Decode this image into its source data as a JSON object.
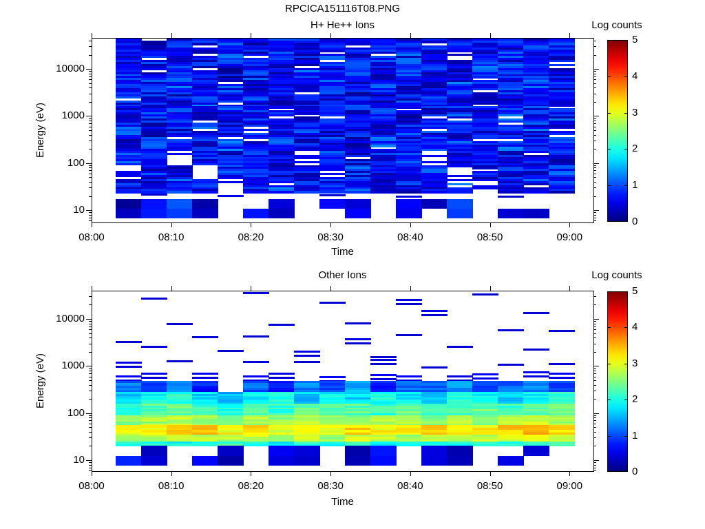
{
  "figure": {
    "title": "RPCICA151116T08.PNG"
  },
  "colors": {
    "background": "#ffffff",
    "axis": "#000000",
    "text": "#000000"
  },
  "chart_data": [
    {
      "type": "heatmap",
      "title": "H+ He++ Ions",
      "xlabel": "Time",
      "ylabel": "Energy (eV)",
      "colorbar_label": "Log counts",
      "colormap": "jet",
      "colorbar_range": [
        0,
        5
      ],
      "colorbar_ticks": [
        0,
        1,
        2,
        3,
        4,
        5
      ],
      "x_ticks": [
        "08:00",
        "08:10",
        "08:20",
        "08:30",
        "08:40",
        "08:50",
        "09:00"
      ],
      "y_ticks": [
        10,
        100,
        1000,
        10000
      ],
      "y_scale": "log",
      "y_range_ev": [
        5.8,
        45000
      ],
      "x_axis_span_minutes": 63,
      "data_time_start": "08:03",
      "data_time_end": "09:01",
      "n_time_columns": 18,
      "column_duration_minutes": 3.2,
      "bands": [
        {
          "e_hi": 45000,
          "e_lo": 23000,
          "style": "fine",
          "values": [
            0.7,
            0.55,
            0.8,
            0.6,
            0.7,
            0.5,
            0.85,
            0.65,
            0.6,
            0.75,
            0.7,
            0.55,
            0.65,
            0.7,
            0.8,
            0.6,
            0.7,
            0.65
          ]
        },
        {
          "e_hi": 23000,
          "e_lo": 11500,
          "style": "fine",
          "values": [
            0.6,
            0.75,
            0.5,
            0.7,
            0.85,
            0.6,
            0.7,
            0.55,
            0.8,
            0.65,
            0.7,
            0.85,
            0.5,
            0.6,
            0.7,
            0.75,
            0.6,
            0.7
          ]
        },
        {
          "e_hi": 11500,
          "e_lo": 5800,
          "style": "fine",
          "values": [
            0.8,
            0.5,
            0.7,
            0.6,
            0.45,
            0.8,
            0.6,
            0.9,
            0.55,
            0.7,
            0.6,
            0.8,
            0.7,
            0.5,
            0.9,
            0.6,
            0.7,
            0.55
          ]
        },
        {
          "e_hi": 5800,
          "e_lo": 2900,
          "style": "fine",
          "values": [
            0.55,
            0.7,
            0.9,
            0.6,
            0.8,
            0.5,
            0.7,
            0.6,
            0.9,
            0.45,
            0.8,
            0.6,
            0.55,
            0.9,
            0.6,
            0.7,
            0.8,
            0.6
          ]
        },
        {
          "e_hi": 2900,
          "e_lo": 1450,
          "style": "fine",
          "values": [
            0.7,
            0.6,
            0.5,
            0.9,
            0.6,
            0.8,
            0.55,
            0.7,
            0.6,
            0.8,
            0.5,
            0.7,
            0.9,
            0.6,
            0.7,
            0.55,
            0.8,
            0.7
          ]
        },
        {
          "e_hi": 1450,
          "e_lo": 720,
          "style": "fine",
          "values": [
            0.6,
            0.9,
            0.7,
            0.5,
            0.8,
            0.6,
            0.9,
            0.55,
            0.7,
            0.6,
            0.8,
            0.5,
            0.6,
            0.8,
            0.55,
            0.9,
            0.6,
            0.8
          ]
        },
        {
          "e_hi": 720,
          "e_lo": 360,
          "style": "fine",
          "values": [
            0.9,
            0.5,
            0.6,
            0.8,
            0.55,
            0.7,
            0.6,
            0.8,
            0.5,
            0.9,
            0.6,
            0.7,
            0.8,
            0.55,
            0.7,
            0.6,
            0.9,
            0.5
          ]
        },
        {
          "e_hi": 360,
          "e_lo": 180,
          "style": "fine",
          "values": [
            0.5,
            0.8,
            0.6,
            0.7,
            0.9,
            0.55,
            0.8,
            0.6,
            0.7,
            0.5,
            0.9,
            0.6,
            0.7,
            0.8,
            0.6,
            0.9,
            0.55,
            0.7
          ]
        },
        {
          "e_hi": 180,
          "e_lo": 91,
          "style": "fine",
          "values": [
            0.8,
            0.6,
            null,
            0.7,
            0.5,
            0.9,
            0.6,
            null,
            0.8,
            0.55,
            0.7,
            0.9,
            null,
            0.6,
            0.8,
            0.5,
            0.7,
            0.6
          ]
        },
        {
          "e_hi": 91,
          "e_lo": 46,
          "style": "fine",
          "values": [
            null,
            0.7,
            0.5,
            null,
            0.8,
            0.6,
            0.55,
            0.7,
            null,
            0.9,
            0.6,
            0.5,
            0.8,
            null,
            0.6,
            0.7,
            0.55,
            0.8
          ]
        },
        {
          "e_hi": 46,
          "e_lo": 23,
          "style": "fine",
          "values": [
            0.6,
            0.5,
            0.8,
            0.6,
            null,
            0.7,
            0.9,
            0.55,
            0.6,
            0.8,
            0.5,
            0.7,
            0.6,
            0.9,
            null,
            0.6,
            0.8,
            0.7
          ]
        },
        {
          "e_hi": 23,
          "e_lo": 17,
          "style": "sparse",
          "values": [
            null,
            0.4,
            null,
            null,
            0.5,
            null,
            null,
            null,
            0.4,
            null,
            null,
            0.5,
            null,
            null,
            null,
            0.4,
            null,
            null
          ]
        },
        {
          "e_hi": 17,
          "e_lo": 6.6,
          "style": "chunk",
          "values": [
            0.2,
            0.6,
            0.9,
            0.3,
            null,
            0.7,
            0.4,
            null,
            0.8,
            0.5,
            null,
            0.6,
            0.3,
            0.9,
            null,
            0.5,
            0.25,
            null
          ]
        }
      ]
    },
    {
      "type": "heatmap",
      "title": "Other Ions",
      "xlabel": "Time",
      "ylabel": "Energy (eV)",
      "colorbar_label": "Log counts",
      "colormap": "jet",
      "colorbar_range": [
        0,
        5
      ],
      "colorbar_ticks": [
        0,
        1,
        2,
        3,
        4,
        5
      ],
      "x_ticks": [
        "08:00",
        "08:10",
        "08:20",
        "08:30",
        "08:40",
        "08:50",
        "09:00"
      ],
      "y_ticks": [
        10,
        100,
        1000,
        10000
      ],
      "y_scale": "log",
      "y_range_ev": [
        5.8,
        40000
      ],
      "x_axis_span_minutes": 63,
      "data_time_start": "08:03",
      "data_time_end": "09:01",
      "n_time_columns": 18,
      "column_duration_minutes": 3.2,
      "bands": [
        {
          "e_hi": 40000,
          "e_lo": 16000,
          "style": "sparse",
          "values": [
            null,
            0.4,
            null,
            null,
            null,
            0.45,
            null,
            null,
            0.4,
            null,
            null,
            0.5,
            null,
            null,
            0.4,
            null,
            null,
            null
          ]
        },
        {
          "e_hi": 16000,
          "e_lo": 6300,
          "style": "sparse",
          "values": [
            null,
            null,
            0.4,
            null,
            null,
            null,
            0.45,
            null,
            null,
            0.4,
            null,
            null,
            0.5,
            null,
            null,
            null,
            0.4,
            null
          ]
        },
        {
          "e_hi": 6300,
          "e_lo": 2800,
          "style": "sparse",
          "values": [
            0.4,
            null,
            null,
            0.45,
            null,
            0.4,
            null,
            null,
            null,
            0.5,
            null,
            0.4,
            null,
            null,
            null,
            0.45,
            null,
            0.4
          ]
        },
        {
          "e_hi": 2800,
          "e_lo": 1400,
          "style": "sparse",
          "values": [
            null,
            0.45,
            null,
            null,
            0.4,
            null,
            null,
            0.5,
            null,
            null,
            0.4,
            null,
            null,
            0.45,
            null,
            null,
            0.4,
            null
          ]
        },
        {
          "e_hi": 1400,
          "e_lo": 800,
          "style": "sparse",
          "values": [
            0.5,
            null,
            0.4,
            null,
            null,
            0.45,
            null,
            0.4,
            null,
            null,
            0.5,
            null,
            0.4,
            null,
            null,
            0.4,
            null,
            0.45
          ]
        },
        {
          "e_hi": 800,
          "e_lo": 480,
          "style": "sparse",
          "values": [
            0.6,
            0.5,
            null,
            0.55,
            null,
            0.6,
            0.5,
            null,
            0.6,
            null,
            0.55,
            0.6,
            null,
            0.5,
            0.6,
            null,
            0.55,
            0.6
          ]
        },
        {
          "e_hi": 480,
          "e_lo": 280,
          "style": "fine",
          "values": [
            1.2,
            0.9,
            1.4,
            0.8,
            null,
            1.1,
            0.7,
            1.3,
            0.9,
            1.5,
            0.8,
            1.2,
            1.0,
            1.4,
            0.9,
            1.1,
            1.3,
            1.0
          ]
        },
        {
          "e_hi": 280,
          "e_lo": 160,
          "style": "fine",
          "values": [
            1.6,
            1.9,
            2.0,
            1.7,
            1.5,
            1.8,
            2.0,
            1.6,
            1.9,
            1.7,
            2.0,
            1.8,
            1.6,
            2.0,
            1.9,
            1.7,
            1.8,
            2.0
          ]
        },
        {
          "e_hi": 160,
          "e_lo": 89,
          "style": "fine",
          "values": [
            2.1,
            2.3,
            2.4,
            2.2,
            2.0,
            2.3,
            2.1,
            2.4,
            2.2,
            2.3,
            2.1,
            2.4,
            2.2,
            2.3,
            2.4,
            2.2,
            2.3,
            2.4
          ]
        },
        {
          "e_hi": 89,
          "e_lo": 55,
          "style": "fine",
          "values": [
            2.5,
            2.7,
            2.8,
            2.6,
            2.5,
            2.7,
            2.6,
            2.8,
            2.7,
            2.6,
            2.8,
            2.7,
            2.5,
            2.8,
            2.6,
            2.7,
            2.8,
            2.7
          ]
        },
        {
          "e_hi": 55,
          "e_lo": 35,
          "style": "fine",
          "values": [
            3.0,
            3.2,
            3.4,
            3.5,
            3.1,
            3.2,
            3.0,
            3.2,
            3.1,
            3.3,
            3.1,
            3.2,
            3.3,
            3.1,
            3.2,
            3.4,
            3.5,
            3.3
          ]
        },
        {
          "e_hi": 35,
          "e_lo": 25,
          "style": "fine",
          "values": [
            2.6,
            2.8,
            2.9,
            2.8,
            2.7,
            2.9,
            2.6,
            2.8,
            2.7,
            2.9,
            2.8,
            2.6,
            2.9,
            2.7,
            2.8,
            2.9,
            3.0,
            2.8
          ]
        },
        {
          "e_hi": 25,
          "e_lo": 20,
          "style": "fine",
          "values": [
            2.0,
            2.1,
            1.9,
            2.0,
            2.2,
            2.0,
            1.9,
            2.1,
            2.0,
            2.2,
            1.9,
            2.0,
            2.1,
            2.0,
            2.2,
            2.1,
            2.2,
            2.1
          ]
        },
        {
          "e_hi": 20,
          "e_lo": 7.6,
          "style": "chunk",
          "values": [
            0.8,
            0.3,
            null,
            0.5,
            0.2,
            null,
            0.6,
            0.3,
            null,
            0.2,
            0.7,
            null,
            0.4,
            0.2,
            null,
            0.6,
            0.5,
            null
          ]
        }
      ]
    }
  ]
}
